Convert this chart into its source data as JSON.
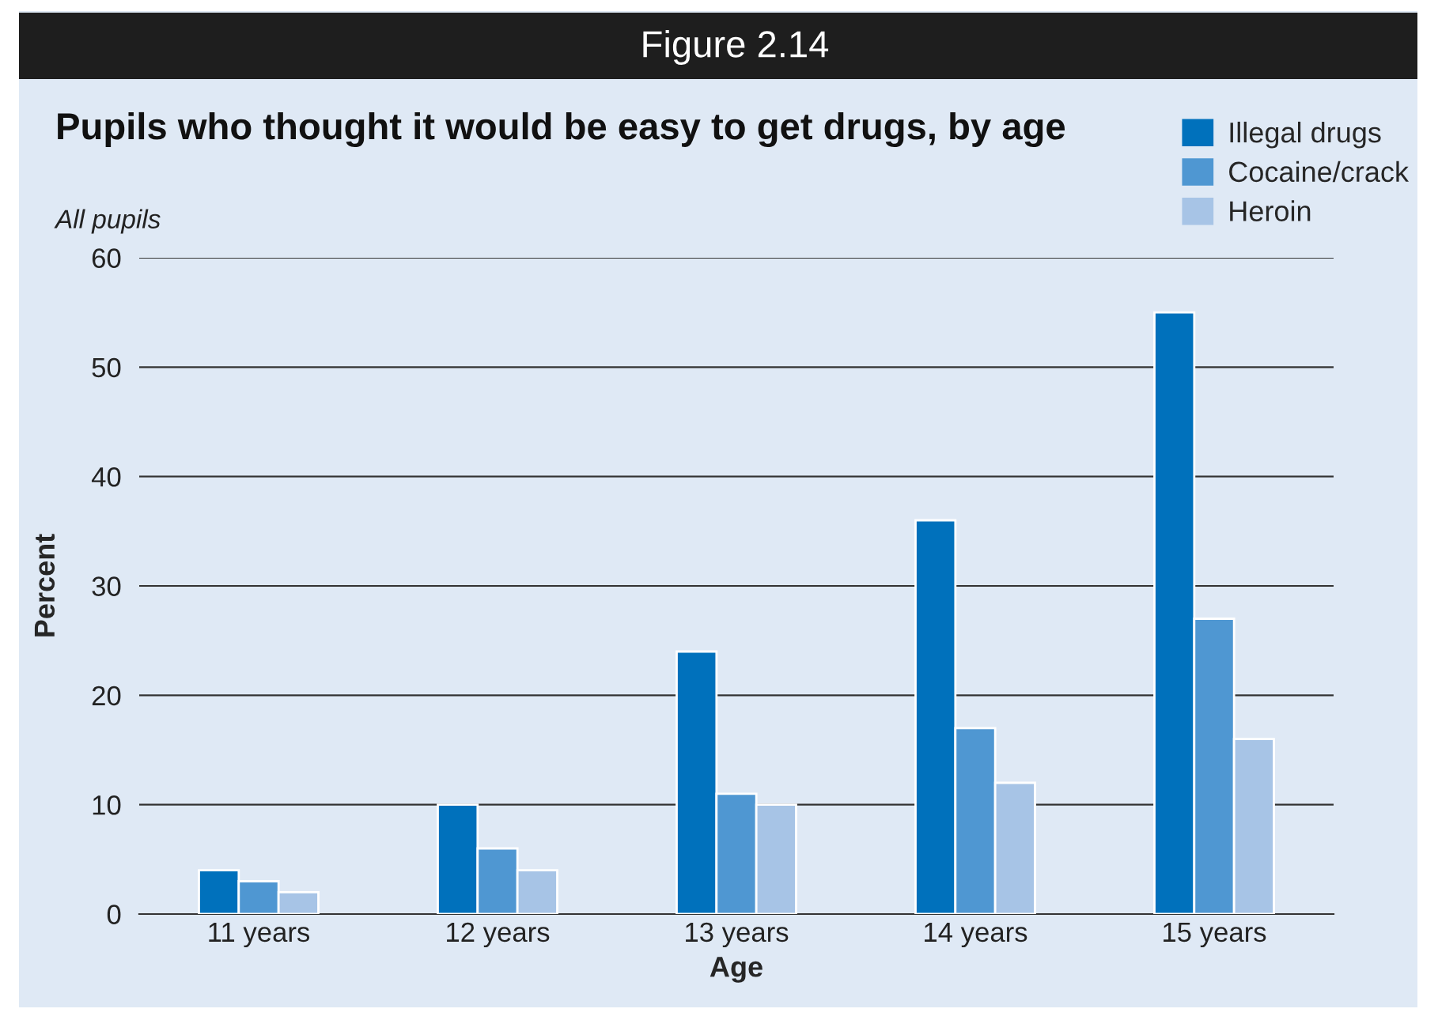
{
  "chart_data": {
    "type": "bar",
    "title": "Pupils who thought it would be easy to get drugs, by age",
    "subtitle": "All pupils",
    "annotations": [
      "Figure 2.14"
    ],
    "xlabel": "Age",
    "ylabel": "Percent",
    "categories": [
      "11 years",
      "12 years",
      "13 years",
      "14 years",
      "15 years"
    ],
    "series": [
      {
        "name": "Illegal drugs",
        "color": "#0071bc",
        "values": [
          4,
          10,
          24,
          36,
          55
        ]
      },
      {
        "name": "Cocaine/crack",
        "color": "#4f97d2",
        "values": [
          3,
          6,
          11,
          17,
          27
        ]
      },
      {
        "name": "Heroin",
        "color": "#a7c4e6",
        "values": [
          2,
          4,
          10,
          12,
          16
        ]
      }
    ],
    "ylim": [
      0,
      60
    ],
    "yticks": [
      0,
      10,
      20,
      30,
      40,
      50,
      60
    ],
    "grid": "y",
    "legend": "top right"
  }
}
